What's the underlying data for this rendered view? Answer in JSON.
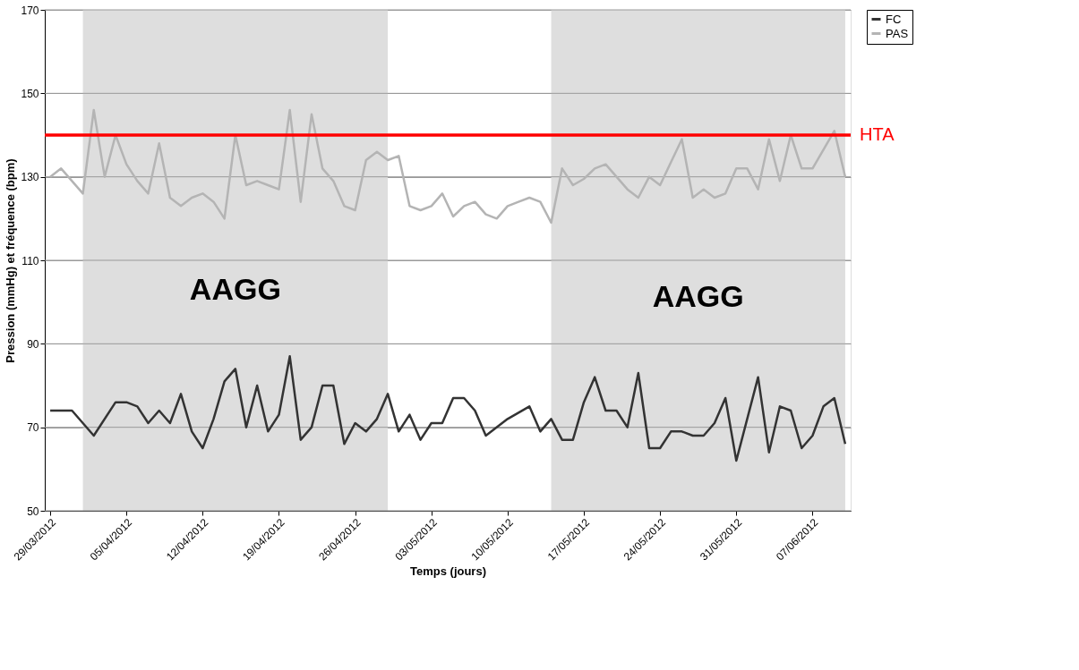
{
  "chart_data": {
    "type": "line",
    "xlabel": "Temps (jours)",
    "ylabel": "Pression (mmHg) et fréquence (bpm)",
    "xlim": [
      "2012-03-28T12:00",
      "2012-06-10T12:00"
    ],
    "xticks": [
      {
        "value": "2012-03-29",
        "label": "29/03/2012"
      },
      {
        "value": "2012-04-05",
        "label": "05/04/2012"
      },
      {
        "value": "2012-04-12",
        "label": "12/04/2012"
      },
      {
        "value": "2012-04-19",
        "label": "19/04/2012"
      },
      {
        "value": "2012-04-26",
        "label": "26/04/2012"
      },
      {
        "value": "2012-05-03",
        "label": "03/05/2012"
      },
      {
        "value": "2012-05-10",
        "label": "10/05/2012"
      },
      {
        "value": "2012-05-17",
        "label": "17/05/2012"
      },
      {
        "value": "2012-05-24",
        "label": "24/05/2012"
      },
      {
        "value": "2012-05-31",
        "label": "31/05/2012"
      },
      {
        "value": "2012-06-07",
        "label": "07/06/2012"
      }
    ],
    "ylim": [
      50,
      170
    ],
    "yticks": [
      50,
      70,
      90,
      110,
      130,
      150,
      170
    ],
    "grid": "y",
    "legend": "right",
    "marker": "none",
    "line_style": "solid",
    "series": [
      {
        "name": "FC",
        "color": "#333333",
        "x": [
          "2012-03-29",
          "2012-03-31",
          "2012-04-02",
          "2012-04-04",
          "2012-04-05",
          "2012-04-06",
          "2012-04-07",
          "2012-04-08",
          "2012-04-09",
          "2012-04-10",
          "2012-04-11",
          "2012-04-12",
          "2012-04-13",
          "2012-04-14",
          "2012-04-15",
          "2012-04-16",
          "2012-04-17",
          "2012-04-18",
          "2012-04-19",
          "2012-04-20",
          "2012-04-21",
          "2012-04-22",
          "2012-04-23",
          "2012-04-24",
          "2012-04-25",
          "2012-04-26",
          "2012-04-27",
          "2012-04-28",
          "2012-04-29",
          "2012-04-30",
          "2012-05-01",
          "2012-05-02",
          "2012-05-03",
          "2012-05-04",
          "2012-05-05",
          "2012-05-06",
          "2012-05-07",
          "2012-05-08",
          "2012-05-10",
          "2012-05-12",
          "2012-05-13",
          "2012-05-14",
          "2012-05-15",
          "2012-05-16",
          "2012-05-17",
          "2012-05-18",
          "2012-05-19",
          "2012-05-20",
          "2012-05-21",
          "2012-05-22",
          "2012-05-23",
          "2012-05-24",
          "2012-05-25",
          "2012-05-26",
          "2012-05-27",
          "2012-05-28",
          "2012-05-29",
          "2012-05-30",
          "2012-05-31",
          "2012-06-02",
          "2012-06-03",
          "2012-06-04",
          "2012-06-05",
          "2012-06-06",
          "2012-06-07",
          "2012-06-08",
          "2012-06-09",
          "2012-06-10"
        ],
        "values": [
          74,
          74,
          68,
          76,
          76,
          75,
          71,
          74,
          71,
          78,
          69,
          65,
          72,
          81,
          84,
          70,
          80,
          69,
          73,
          87,
          67,
          70,
          80,
          80,
          66,
          71,
          69,
          72,
          78,
          69,
          73,
          67,
          71,
          71,
          77,
          77,
          74,
          68,
          72,
          75,
          69,
          72,
          67,
          67,
          76,
          82,
          74,
          74,
          70,
          83,
          65,
          65,
          69,
          69,
          68,
          68,
          71,
          77,
          62,
          82,
          64,
          75,
          74,
          65,
          68,
          75,
          77,
          66
        ]
      },
      {
        "name": "PAS",
        "color": "#b4b4b4",
        "x": [
          "2012-03-29",
          "2012-03-30",
          "2012-04-01",
          "2012-04-02",
          "2012-04-03",
          "2012-04-04",
          "2012-04-05",
          "2012-04-06",
          "2012-04-07",
          "2012-04-08",
          "2012-04-09",
          "2012-04-10",
          "2012-04-11",
          "2012-04-12",
          "2012-04-13",
          "2012-04-14",
          "2012-04-15",
          "2012-04-16",
          "2012-04-17",
          "2012-04-18",
          "2012-04-19",
          "2012-04-20",
          "2012-04-21",
          "2012-04-22",
          "2012-04-23",
          "2012-04-24",
          "2012-04-25",
          "2012-04-26",
          "2012-04-27",
          "2012-04-28",
          "2012-04-29",
          "2012-04-30",
          "2012-05-01",
          "2012-05-02",
          "2012-05-03",
          "2012-05-04",
          "2012-05-05",
          "2012-05-06",
          "2012-05-07",
          "2012-05-08",
          "2012-05-09",
          "2012-05-10",
          "2012-05-11",
          "2012-05-12",
          "2012-05-13",
          "2012-05-14",
          "2012-05-15",
          "2012-05-16",
          "2012-05-17",
          "2012-05-18",
          "2012-05-19",
          "2012-05-20",
          "2012-05-21",
          "2012-05-22",
          "2012-05-23",
          "2012-05-24",
          "2012-05-25",
          "2012-05-26",
          "2012-05-27",
          "2012-05-28",
          "2012-05-29",
          "2012-05-30",
          "2012-05-31",
          "2012-06-01",
          "2012-06-02",
          "2012-06-03",
          "2012-06-04",
          "2012-06-05",
          "2012-06-06",
          "2012-06-07",
          "2012-06-09",
          "2012-06-10"
        ],
        "values": [
          130,
          132,
          126,
          146,
          130,
          140,
          133,
          129,
          126,
          138,
          125,
          123,
          125,
          126,
          124,
          120,
          140,
          128,
          129,
          128,
          127,
          146,
          124,
          145,
          132,
          129,
          123,
          122,
          134,
          136,
          134,
          135,
          123,
          122,
          123,
          126,
          120.5,
          123,
          124,
          121,
          120,
          123,
          124,
          125,
          124,
          119,
          132,
          128,
          129.5,
          132,
          133,
          130,
          127,
          125,
          130,
          128,
          133.5,
          139,
          125,
          127,
          125,
          126,
          132,
          132,
          127,
          139,
          129,
          140,
          132,
          132,
          141,
          130
        ]
      }
    ],
    "ref_lines": [
      {
        "axis": "y",
        "value": 140,
        "label": "HTA",
        "color": "#ff0000",
        "line_style": "solid"
      }
    ],
    "bands": [
      {
        "axis": "x",
        "from": "2012-04-01",
        "to": "2012-04-29",
        "label": "AAGG",
        "color": "#dedede"
      },
      {
        "axis": "x",
        "from": "2012-05-14",
        "to": "2012-06-10",
        "label": "AAGG",
        "color": "#dedede"
      }
    ]
  }
}
